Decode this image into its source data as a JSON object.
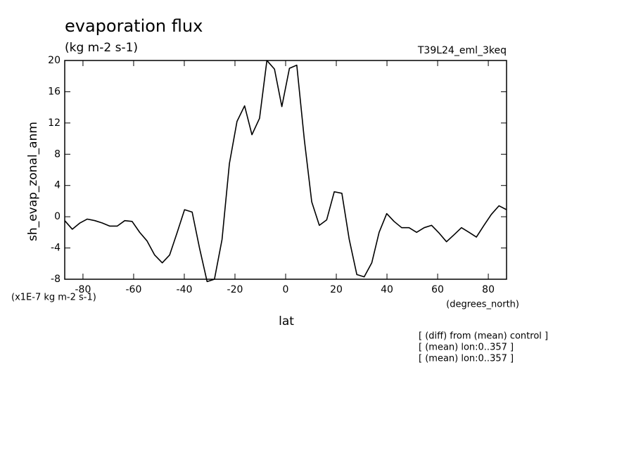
{
  "chart_data": {
    "type": "line",
    "title": "evaporation flux",
    "subtitle": "(kg m-2 s-1)",
    "experiment": "T39L24_eml_3keq",
    "x_label": "lat",
    "x_units": "(degrees_north)",
    "y_label": "sh_evap_zonal_anm",
    "y_units": "(x1E-7 kg m-2 s-1)",
    "notes": [
      "[ (diff) from (mean) control ]",
      "[ (mean) lon:0..357 ]",
      "[ (mean) lon:0..357 ]"
    ],
    "x": [
      -87.2,
      -84.2,
      -81.2,
      -78.3,
      -75.3,
      -72.4,
      -69.4,
      -66.5,
      -63.5,
      -60.6,
      -57.6,
      -54.7,
      -51.7,
      -48.7,
      -45.8,
      -42.8,
      -39.9,
      -36.9,
      -34.0,
      -31.0,
      -28.1,
      -25.1,
      -22.2,
      -19.2,
      -16.2,
      -13.3,
      -10.3,
      -7.4,
      -4.4,
      -1.5,
      1.5,
      4.4,
      7.4,
      10.3,
      13.3,
      16.2,
      19.2,
      22.2,
      25.1,
      28.1,
      31.0,
      34.0,
      36.9,
      39.9,
      42.8,
      45.8,
      48.7,
      51.7,
      54.7,
      57.6,
      60.6,
      63.5,
      66.5,
      69.4,
      72.4,
      75.3,
      78.3,
      81.2,
      84.2,
      87.2
    ],
    "values": [
      -0.5,
      -1.6,
      -0.8,
      -0.3,
      -0.5,
      -0.8,
      -1.2,
      -1.2,
      -0.5,
      -0.6,
      -2.0,
      -3.1,
      -4.9,
      -5.9,
      -4.9,
      -2.0,
      0.9,
      0.6,
      -4.0,
      -8.3,
      -8.0,
      -2.9,
      6.8,
      12.2,
      14.2,
      10.5,
      12.6,
      20.0,
      18.9,
      14.1,
      19.0,
      19.4,
      9.8,
      1.9,
      -1.1,
      -0.4,
      3.2,
      3.0,
      -2.9,
      -7.4,
      -7.7,
      -5.9,
      -2.0,
      0.4,
      -0.6,
      -1.4,
      -1.4,
      -2.0,
      -1.4,
      -1.1,
      -2.1,
      -3.2,
      -2.3,
      -1.4,
      -2.0,
      -2.6,
      -1.1,
      0.3,
      1.4,
      0.9
    ],
    "color": "#000000",
    "xlim": [
      -87.2,
      87.2
    ],
    "xticks": [
      -80,
      -60,
      -40,
      -20,
      0,
      20,
      40,
      60,
      80
    ],
    "ylim": [
      -8,
      20
    ],
    "yticks": [
      -8,
      -4,
      0,
      4,
      8,
      12,
      16,
      20
    ],
    "grid": false
  }
}
